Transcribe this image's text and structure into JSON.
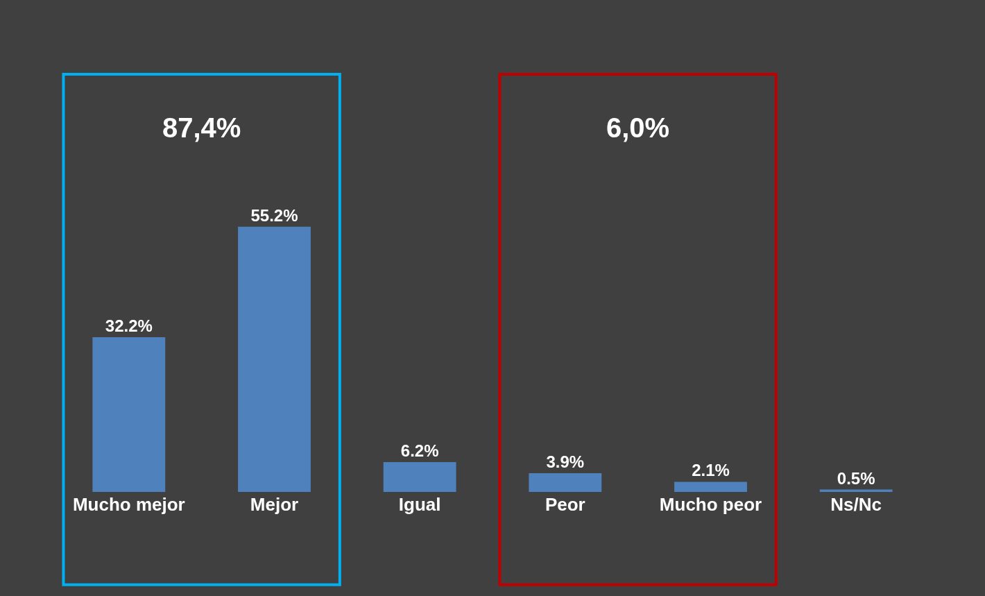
{
  "chart_data": {
    "type": "bar",
    "categories": [
      "Mucho mejor",
      "Mejor",
      "Igual",
      "Peor",
      "Mucho peor",
      "Ns/Nc"
    ],
    "values": [
      32.2,
      55.2,
      6.2,
      3.9,
      2.1,
      0.5
    ],
    "value_labels": [
      "32.2%",
      "55.2%",
      "6.2%",
      "3.9%",
      "2.1%",
      "0.5%"
    ],
    "color": "#4f81bd",
    "annotations": [
      "87,4%",
      "6,0%"
    ],
    "grid": false,
    "legend": false
  }
}
